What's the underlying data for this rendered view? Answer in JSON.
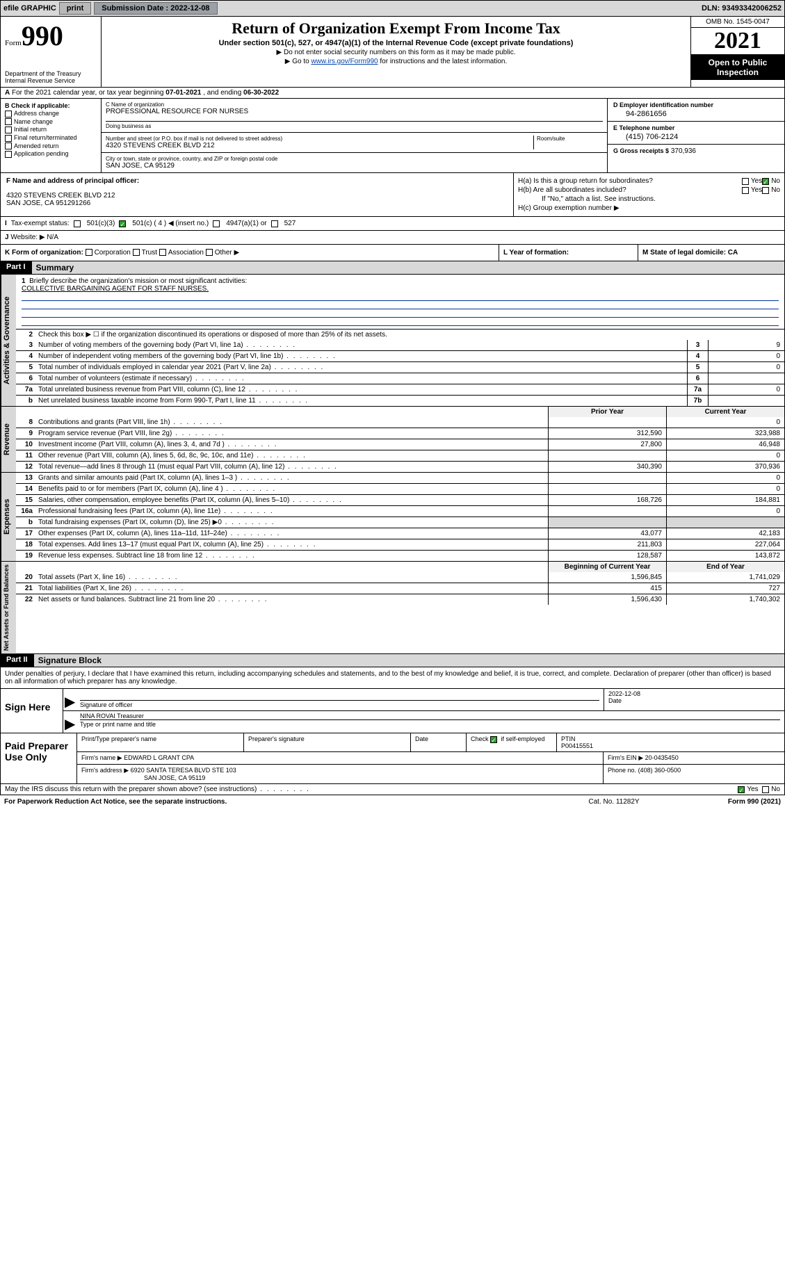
{
  "topbar": {
    "efile": "efile GRAPHIC",
    "print": "print",
    "submission_label": "Submission Date :",
    "submission_date": "2022-12-08",
    "dln_label": "DLN:",
    "dln": "93493342006252"
  },
  "header": {
    "form_label": "Form",
    "form_number": "990",
    "dept": "Department of the Treasury",
    "irs": "Internal Revenue Service",
    "title": "Return of Organization Exempt From Income Tax",
    "sub": "Under section 501(c), 527, or 4947(a)(1) of the Internal Revenue Code (except private foundations)",
    "note1": "▶ Do not enter social security numbers on this form as it may be made public.",
    "note2_pre": "▶ Go to ",
    "note2_link": "www.irs.gov/Form990",
    "note2_post": " for instructions and the latest information.",
    "omb": "OMB No. 1545-0047",
    "year": "2021",
    "open": "Open to Public Inspection"
  },
  "row_a": {
    "label": "A",
    "text_pre": "For the 2021 calendar year, or tax year beginning ",
    "begin": "07-01-2021",
    "mid": " , and ending ",
    "end": "06-30-2022"
  },
  "col_b": {
    "label": "B Check if applicable:",
    "items": [
      "Address change",
      "Name change",
      "Initial return",
      "Final return/terminated",
      "Amended return",
      "Application pending"
    ]
  },
  "col_c": {
    "name_label": "C Name of organization",
    "name": "PROFESSIONAL RESOURCE FOR NURSES",
    "dba_label": "Doing business as",
    "dba": "",
    "addr_label": "Number and street (or P.O. box if mail is not delivered to street address)",
    "room_label": "Room/suite",
    "addr": "4320 STEVENS CREEK BLVD 212",
    "city_label": "City or town, state or province, country, and ZIP or foreign postal code",
    "city": "SAN JOSE, CA  95129"
  },
  "col_d": {
    "d_label": "D Employer identification number",
    "d_val": "94-2861656",
    "e_label": "E Telephone number",
    "e_val": "(415) 706-2124",
    "g_label": "G Gross receipts $",
    "g_val": "370,936"
  },
  "block_f": {
    "f_label": "F Name and address of principal officer:",
    "f_addr1": "4320 STEVENS CREEK BLVD 212",
    "f_addr2": "SAN JOSE, CA  951291266"
  },
  "block_h": {
    "ha": "H(a)  Is this a group return for subordinates?",
    "hb": "H(b)  Are all subordinates included?",
    "hb_note": "If \"No,\" attach a list. See instructions.",
    "hc": "H(c)  Group exemption number ▶",
    "yes": "Yes",
    "no": "No"
  },
  "row_i": {
    "label": "I",
    "text": "Tax-exempt status:",
    "c3": "501(c)(3)",
    "c": "501(c) ( 4 ) ◀ (insert no.)",
    "a1": "4947(a)(1) or",
    "s527": "527"
  },
  "row_j": {
    "label": "J",
    "text": "Website: ▶",
    "val": "N/A"
  },
  "row_k": {
    "k": "K Form of organization:",
    "opts": [
      "Corporation",
      "Trust",
      "Association",
      "Other ▶"
    ],
    "l": "L Year of formation:",
    "m": "M State of legal domicile: CA"
  },
  "part1": {
    "hdr": "Part I",
    "title": "Summary",
    "line1": "Briefly describe the organization's mission or most significant activities:",
    "mission": "COLLECTIVE BARGAINING AGENT FOR STAFF NURSES.",
    "line2": "Check this box ▶ ☐  if the organization discontinued its operations or disposed of more than 25% of its net assets.",
    "tabs": {
      "gov": "Activities & Governance",
      "rev": "Revenue",
      "exp": "Expenses",
      "net": "Net Assets or Fund Balances"
    },
    "col_prior": "Prior Year",
    "col_current": "Current Year",
    "col_begin": "Beginning of Current Year",
    "col_end": "End of Year",
    "gov_lines": [
      {
        "n": "3",
        "t": "Number of voting members of the governing body (Part VI, line 1a)",
        "bn": "3",
        "v": "9"
      },
      {
        "n": "4",
        "t": "Number of independent voting members of the governing body (Part VI, line 1b)",
        "bn": "4",
        "v": "0"
      },
      {
        "n": "5",
        "t": "Total number of individuals employed in calendar year 2021 (Part V, line 2a)",
        "bn": "5",
        "v": "0"
      },
      {
        "n": "6",
        "t": "Total number of volunteers (estimate if necessary)",
        "bn": "6",
        "v": ""
      },
      {
        "n": "7a",
        "t": "Total unrelated business revenue from Part VIII, column (C), line 12",
        "bn": "7a",
        "v": "0"
      },
      {
        "n": "b",
        "t": "Net unrelated business taxable income from Form 990-T, Part I, line 11",
        "bn": "7b",
        "v": ""
      }
    ],
    "rev_lines": [
      {
        "n": "8",
        "t": "Contributions and grants (Part VIII, line 1h)",
        "p": "",
        "c": "0"
      },
      {
        "n": "9",
        "t": "Program service revenue (Part VIII, line 2g)",
        "p": "312,590",
        "c": "323,988"
      },
      {
        "n": "10",
        "t": "Investment income (Part VIII, column (A), lines 3, 4, and 7d )",
        "p": "27,800",
        "c": "46,948"
      },
      {
        "n": "11",
        "t": "Other revenue (Part VIII, column (A), lines 5, 6d, 8c, 9c, 10c, and 11e)",
        "p": "",
        "c": "0"
      },
      {
        "n": "12",
        "t": "Total revenue—add lines 8 through 11 (must equal Part VIII, column (A), line 12)",
        "p": "340,390",
        "c": "370,936"
      }
    ],
    "exp_lines": [
      {
        "n": "13",
        "t": "Grants and similar amounts paid (Part IX, column (A), lines 1–3 )",
        "p": "",
        "c": "0"
      },
      {
        "n": "14",
        "t": "Benefits paid to or for members (Part IX, column (A), line 4 )",
        "p": "",
        "c": "0"
      },
      {
        "n": "15",
        "t": "Salaries, other compensation, employee benefits (Part IX, column (A), lines 5–10)",
        "p": "168,726",
        "c": "184,881"
      },
      {
        "n": "16a",
        "t": "Professional fundraising fees (Part IX, column (A), line 11e)",
        "p": "",
        "c": "0"
      },
      {
        "n": "b",
        "t": "Total fundraising expenses (Part IX, column (D), line 25) ▶0",
        "p": "",
        "c": "",
        "shade": true
      },
      {
        "n": "17",
        "t": "Other expenses (Part IX, column (A), lines 11a–11d, 11f–24e)",
        "p": "43,077",
        "c": "42,183"
      },
      {
        "n": "18",
        "t": "Total expenses. Add lines 13–17 (must equal Part IX, column (A), line 25)",
        "p": "211,803",
        "c": "227,064"
      },
      {
        "n": "19",
        "t": "Revenue less expenses. Subtract line 18 from line 12",
        "p": "128,587",
        "c": "143,872"
      }
    ],
    "net_lines": [
      {
        "n": "20",
        "t": "Total assets (Part X, line 16)",
        "p": "1,596,845",
        "c": "1,741,029"
      },
      {
        "n": "21",
        "t": "Total liabilities (Part X, line 26)",
        "p": "415",
        "c": "727"
      },
      {
        "n": "22",
        "t": "Net assets or fund balances. Subtract line 21 from line 20",
        "p": "1,596,430",
        "c": "1,740,302"
      }
    ]
  },
  "part2": {
    "hdr": "Part II",
    "title": "Signature Block",
    "intro": "Under penalties of perjury, I declare that I have examined this return, including accompanying schedules and statements, and to the best of my knowledge and belief, it is true, correct, and complete. Declaration of preparer (other than officer) is based on all information of which preparer has any knowledge.",
    "sign_here": "Sign Here",
    "sig_of_officer": "Signature of officer",
    "date": "Date",
    "sig_date": "2022-12-08",
    "officer_name": "NINA ROVAI  Treasurer",
    "type_name": "Type or print name and title",
    "paid": "Paid Preparer Use Only",
    "pt_name": "Print/Type preparer's name",
    "pt_sig": "Preparer's signature",
    "pt_date": "Date",
    "pt_check": "Check ☑ if self-employed",
    "pt_ptin_l": "PTIN",
    "pt_ptin": "P00415551",
    "firm_name_l": "Firm's name      ▶",
    "firm_name": "EDWARD L GRANT CPA",
    "firm_ein_l": "Firm's EIN ▶",
    "firm_ein": "20-0435450",
    "firm_addr_l": "Firm's address ▶",
    "firm_addr1": "6920 SANTA TERESA BLVD STE 103",
    "firm_addr2": "SAN JOSE, CA  95119",
    "phone_l": "Phone no.",
    "phone": "(408) 360-0500",
    "discuss": "May the IRS discuss this return with the preparer shown above? (see instructions)",
    "paperwork": "For Paperwork Reduction Act Notice, see the separate instructions.",
    "cat": "Cat. No. 11282Y",
    "formref": "Form 990 (2021)"
  }
}
